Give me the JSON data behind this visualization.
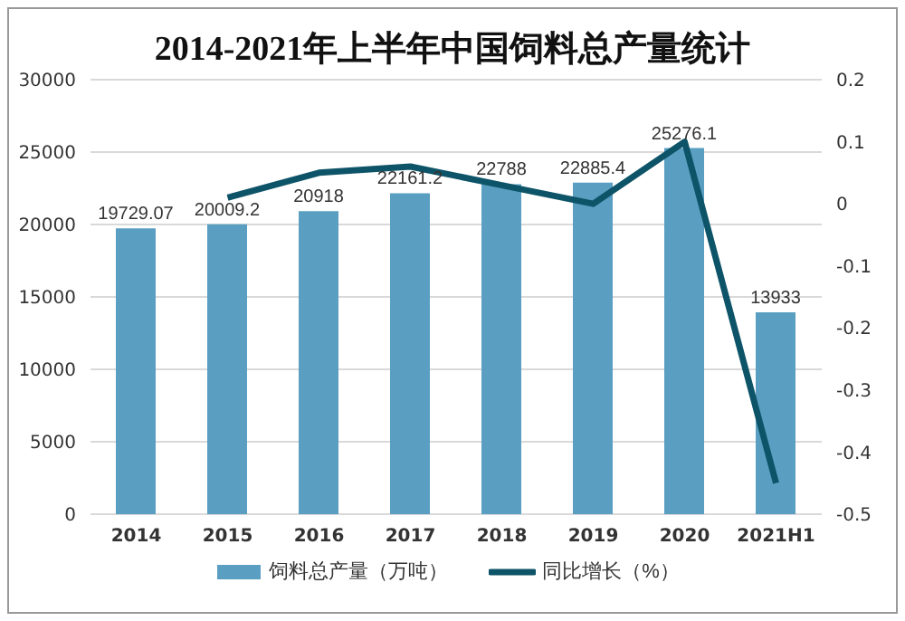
{
  "chart_data": {
    "type": "bar",
    "title": "2014-2021年上半年中国饲料总产量统计",
    "categories": [
      "2014",
      "2015",
      "2016",
      "2017",
      "2018",
      "2019",
      "2020",
      "2021H1"
    ],
    "series": [
      {
        "name": "饲料总产量（万吨）",
        "color": "#5a9fc2",
        "values": [
          19729.07,
          20009.2,
          20918,
          22161.2,
          22788,
          22885.4,
          25276.1,
          13933
        ],
        "value_labels": [
          "19729.07",
          "20009.2",
          "20918",
          "22161.2",
          "22788",
          "22885.4",
          "25276.1",
          "13933"
        ]
      },
      {
        "name": "同比增长（%）",
        "type": "line",
        "axis": "y2",
        "color": "#0e5468",
        "values": [
          null,
          0.01,
          0.05,
          0.06,
          0.03,
          0.0,
          0.1,
          -0.45
        ]
      }
    ],
    "ylim": [
      0,
      30000
    ],
    "yticks": [
      0,
      5000,
      10000,
      15000,
      20000,
      25000,
      30000
    ],
    "y2lim": [
      -0.5,
      0.2
    ],
    "y2ticks": [
      -0.5,
      -0.4,
      -0.3,
      -0.2,
      -0.1,
      0,
      0.1,
      0.2
    ],
    "grid": "y",
    "legend": "bottom",
    "marker": "none"
  }
}
